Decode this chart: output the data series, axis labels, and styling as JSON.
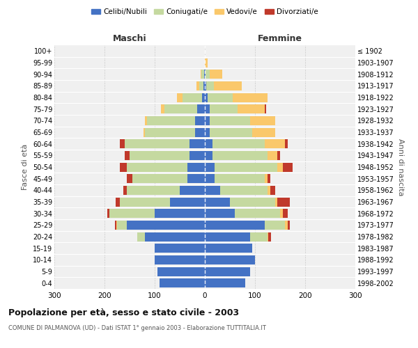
{
  "age_groups": [
    "0-4",
    "5-9",
    "10-14",
    "15-19",
    "20-24",
    "25-29",
    "30-34",
    "35-39",
    "40-44",
    "45-49",
    "50-54",
    "55-59",
    "60-64",
    "65-69",
    "70-74",
    "75-79",
    "80-84",
    "85-89",
    "90-94",
    "95-99",
    "100+"
  ],
  "birth_years": [
    "1998-2002",
    "1993-1997",
    "1988-1992",
    "1983-1987",
    "1978-1982",
    "1973-1977",
    "1968-1972",
    "1963-1967",
    "1958-1962",
    "1953-1957",
    "1948-1952",
    "1943-1947",
    "1938-1942",
    "1933-1937",
    "1928-1932",
    "1923-1927",
    "1918-1922",
    "1913-1917",
    "1908-1912",
    "1903-1907",
    "≤ 1902"
  ],
  "male": {
    "celibi": [
      90,
      95,
      100,
      100,
      120,
      155,
      100,
      70,
      50,
      35,
      35,
      30,
      30,
      20,
      20,
      15,
      5,
      3,
      2,
      0,
      0
    ],
    "coniugati": [
      0,
      0,
      0,
      0,
      15,
      20,
      90,
      100,
      105,
      110,
      120,
      120,
      130,
      100,
      95,
      65,
      40,
      8,
      5,
      0,
      0
    ],
    "vedovi": [
      0,
      0,
      0,
      0,
      0,
      2,
      0,
      0,
      0,
      0,
      0,
      0,
      0,
      2,
      5,
      8,
      10,
      5,
      2,
      0,
      0
    ],
    "divorziati": [
      0,
      0,
      0,
      0,
      0,
      2,
      5,
      8,
      8,
      10,
      15,
      10,
      10,
      0,
      0,
      0,
      0,
      0,
      0,
      0,
      0
    ]
  },
  "female": {
    "nubili": [
      80,
      90,
      100,
      95,
      90,
      120,
      60,
      50,
      30,
      20,
      20,
      15,
      15,
      10,
      10,
      10,
      5,
      3,
      2,
      0,
      0
    ],
    "coniugate": [
      0,
      0,
      0,
      0,
      35,
      40,
      90,
      90,
      95,
      100,
      125,
      110,
      105,
      85,
      80,
      55,
      50,
      15,
      8,
      0,
      0
    ],
    "vedove": [
      0,
      0,
      0,
      0,
      2,
      5,
      5,
      5,
      5,
      5,
      10,
      20,
      40,
      45,
      50,
      55,
      70,
      55,
      25,
      5,
      0
    ],
    "divorziate": [
      0,
      0,
      0,
      0,
      5,
      5,
      10,
      25,
      10,
      5,
      20,
      5,
      5,
      0,
      0,
      2,
      0,
      0,
      0,
      0,
      0
    ]
  },
  "colors": {
    "celibi": "#4472C4",
    "coniugati": "#C5D9A0",
    "vedovi": "#FAC86B",
    "divorziati": "#C0392B"
  },
  "title": "Popolazione per età, sesso e stato civile - 2003",
  "subtitle": "COMUNE DI PALMANOVA (UD) - Dati ISTAT 1° gennaio 2003 - Elaborazione TUTTITALIA.IT",
  "ylabel_left": "Fasce di età",
  "ylabel_right": "Anni di nascita",
  "xlabel_maschi": "Maschi",
  "xlabel_femmine": "Femmine",
  "xlim": 300,
  "background_color": "#ffffff",
  "grid_color": "#cccccc",
  "bar_height": 0.78,
  "legend_labels": [
    "Celibi/Nubili",
    "Coniugati/e",
    "Vedovi/e",
    "Divorziati/e"
  ]
}
